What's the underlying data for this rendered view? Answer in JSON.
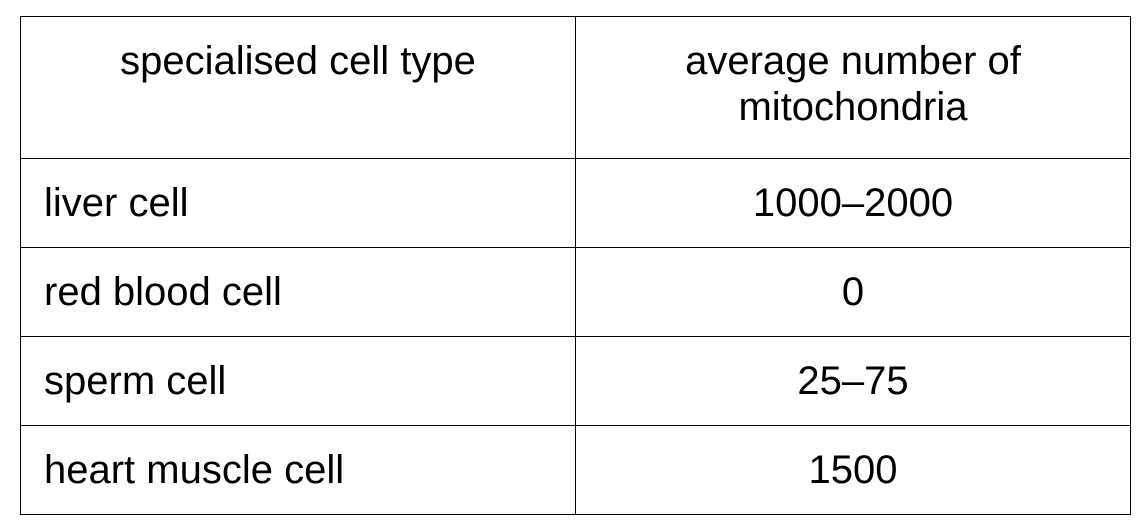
{
  "table": {
    "headers": [
      "specialised cell type",
      "average number of mitochondria"
    ],
    "rows": [
      {
        "cell_type": "liver cell",
        "count": "1000–2000"
      },
      {
        "cell_type": "red blood cell",
        "count": "0"
      },
      {
        "cell_type": "sperm cell",
        "count": "25–75"
      },
      {
        "cell_type": "heart muscle cell",
        "count": "1500"
      }
    ]
  }
}
